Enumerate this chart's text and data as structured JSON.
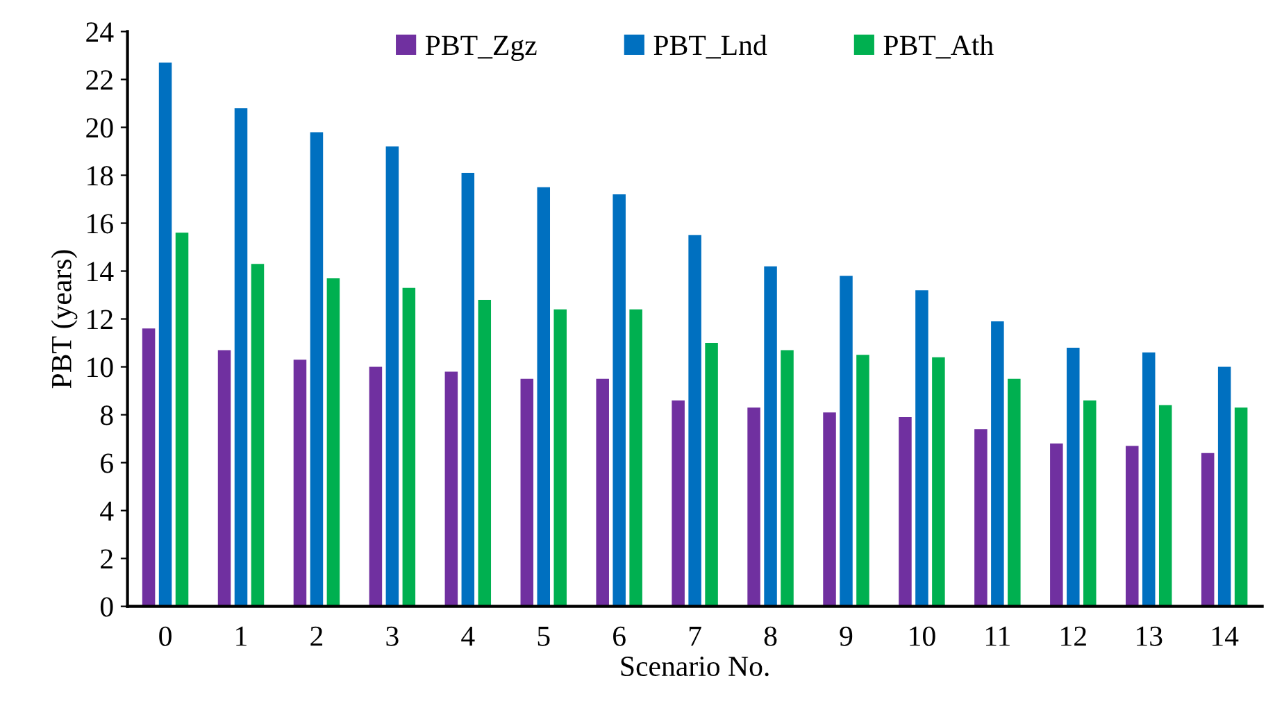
{
  "chart_data": {
    "type": "bar",
    "xlabel": "Scenario No.",
    "ylabel": "PBT (years)",
    "categories": [
      "0",
      "1",
      "2",
      "3",
      "4",
      "5",
      "6",
      "7",
      "8",
      "9",
      "10",
      "11",
      "12",
      "13",
      "14"
    ],
    "series": [
      {
        "name": "PBT_Zgz",
        "color": "#7030a0",
        "values": [
          11.6,
          10.7,
          10.3,
          10.0,
          9.8,
          9.5,
          9.5,
          8.6,
          8.3,
          8.1,
          7.9,
          7.4,
          6.8,
          6.7,
          6.4
        ]
      },
      {
        "name": "PBT_Lnd",
        "color": "#0070c0",
        "values": [
          22.7,
          20.8,
          19.8,
          19.2,
          18.1,
          17.5,
          17.2,
          15.5,
          14.2,
          13.8,
          13.2,
          11.9,
          10.8,
          10.6,
          10.0
        ]
      },
      {
        "name": "PBT_Ath",
        "color": "#00b050",
        "values": [
          15.6,
          14.3,
          13.7,
          13.3,
          12.8,
          12.4,
          12.4,
          11.0,
          10.7,
          10.5,
          10.4,
          9.5,
          8.6,
          8.4,
          8.3
        ]
      }
    ],
    "ylim": [
      0,
      24
    ],
    "yticks": [
      0,
      2,
      4,
      6,
      8,
      10,
      12,
      14,
      16,
      18,
      20,
      22,
      24
    ],
    "grid": false,
    "legend": "top"
  }
}
